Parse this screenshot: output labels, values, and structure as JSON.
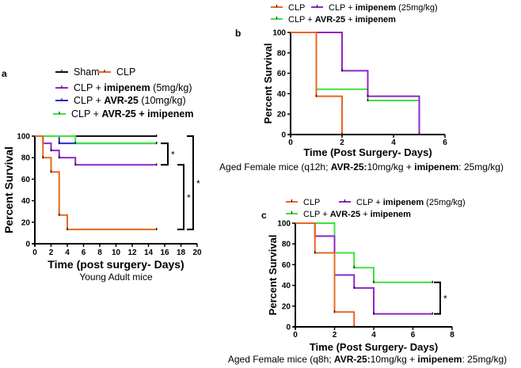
{
  "colors": {
    "sham": "#111111",
    "clp": "#e8671e",
    "imipenem": "#9025c8",
    "avr25": "#2030d0",
    "combo": "#3ee23e"
  },
  "chart_data": [
    {
      "type": "line",
      "panel": "a",
      "title": "",
      "xlabel": "Time (post surgery- Days)",
      "ylabel": "Percent Survival",
      "caption": "Young Adult mice",
      "xlim": [
        0,
        20
      ],
      "xticks": [
        0,
        2,
        4,
        6,
        8,
        10,
        12,
        14,
        16,
        18,
        20
      ],
      "ylim": [
        0,
        100
      ],
      "yticks": [
        0,
        20,
        40,
        60,
        80,
        100
      ],
      "legend": [
        {
          "key": "sham",
          "parts": [
            [
              "Sham",
              0
            ]
          ]
        },
        {
          "key": "clp",
          "parts": [
            [
              "CLP",
              0
            ]
          ]
        },
        {
          "key": "imipenem",
          "parts": [
            [
              "CLP + ",
              0
            ],
            [
              "imipenem",
              1
            ],
            [
              " (5mg/kg)",
              0
            ]
          ]
        },
        {
          "key": "avr25",
          "parts": [
            [
              "CLP + ",
              0
            ],
            [
              "AVR-25",
              1
            ],
            [
              " (10mg/kg)",
              0
            ]
          ]
        },
        {
          "key": "combo",
          "parts": [
            [
              "CLP + ",
              0
            ],
            [
              "AVR-25",
              1
            ],
            [
              " + imipenem",
              1
            ]
          ]
        }
      ],
      "series": [
        {
          "name": "Sham",
          "key": "sham",
          "steps": [
            [
              0,
              100
            ],
            [
              15,
              100
            ]
          ]
        },
        {
          "name": "CLP + AVR-25 (10mg/kg)",
          "key": "avr25",
          "steps": [
            [
              0,
              100
            ],
            [
              3,
              93.3
            ],
            [
              15,
              93.3
            ]
          ]
        },
        {
          "name": "CLP + AVR-25 + imipenem",
          "key": "combo",
          "steps": [
            [
              0,
              100
            ],
            [
              5,
              93.3
            ],
            [
              15,
              93.3
            ]
          ]
        },
        {
          "name": "CLP + imipenem (5mg/kg)",
          "key": "imipenem",
          "steps": [
            [
              0,
              100
            ],
            [
              1,
              93.3
            ],
            [
              2,
              86.7
            ],
            [
              3,
              80
            ],
            [
              5,
              73.3
            ],
            [
              15,
              73.3
            ]
          ]
        },
        {
          "name": "CLP",
          "key": "clp",
          "steps": [
            [
              0,
              100
            ],
            [
              1,
              80
            ],
            [
              2,
              66.7
            ],
            [
              3,
              26.7
            ],
            [
              4,
              13.3
            ],
            [
              15,
              13.3
            ]
          ]
        }
      ],
      "significance": [
        {
          "between": [
            93.3,
            73.3
          ],
          "label": "*"
        },
        {
          "between": [
            73.3,
            13.3
          ],
          "label": "*"
        },
        {
          "between": [
            100,
            13.3
          ],
          "label": "*"
        }
      ]
    },
    {
      "type": "line",
      "panel": "b",
      "xlabel": "Time (Post Surgery- Days)",
      "ylabel": "Percent Survival",
      "caption_parts": [
        [
          "Aged Female mice (q12h; ",
          0
        ],
        [
          "AVR-25:",
          1
        ],
        [
          "10mg/kg + ",
          0
        ],
        [
          "imipenem",
          1
        ],
        [
          ": 25mg/kg)",
          0
        ]
      ],
      "xlim": [
        0,
        6
      ],
      "xticks": [
        0,
        2,
        4,
        6
      ],
      "ylim": [
        0,
        100
      ],
      "yticks": [
        0,
        20,
        40,
        60,
        80,
        100
      ],
      "legend": [
        {
          "key": "clp",
          "parts": [
            [
              "CLP",
              0
            ]
          ]
        },
        {
          "key": "imipenem",
          "parts": [
            [
              "CLP + ",
              0
            ],
            [
              "imipenem",
              1
            ],
            [
              " (25mg/kg)",
              0
            ]
          ]
        },
        {
          "key": "combo",
          "parts": [
            [
              "CLP + ",
              0
            ],
            [
              "AVR-25",
              1
            ],
            [
              "  + ",
              0
            ],
            [
              "imipenem",
              1
            ]
          ]
        }
      ],
      "series": [
        {
          "name": "CLP + AVR-25 + imipenem",
          "key": "combo",
          "steps": [
            [
              0,
              100
            ],
            [
              1,
              44.4
            ],
            [
              3,
              33.3
            ],
            [
              5,
              33.3
            ]
          ]
        },
        {
          "name": "CLP + imipenem (25mg/kg)",
          "key": "imipenem",
          "steps": [
            [
              0,
              100
            ],
            [
              2,
              62.5
            ],
            [
              3,
              37.5
            ],
            [
              5,
              0
            ]
          ]
        },
        {
          "name": "CLP",
          "key": "clp",
          "steps": [
            [
              0,
              100
            ],
            [
              1,
              37.5
            ],
            [
              2,
              0
            ]
          ]
        }
      ],
      "significance": []
    },
    {
      "type": "line",
      "panel": "c",
      "xlabel": "Time (Post Surgery- Days)",
      "ylabel": "Percent Survival",
      "caption_parts": [
        [
          "Aged Female mice (q8h; ",
          0
        ],
        [
          "AVR-25:",
          1
        ],
        [
          "10mg/kg + ",
          0
        ],
        [
          "imipenem",
          1
        ],
        [
          ": 25mg/kg)",
          0
        ]
      ],
      "xlim": [
        0,
        8
      ],
      "xticks": [
        0,
        2,
        4,
        6,
        8
      ],
      "ylim": [
        0,
        100
      ],
      "yticks": [
        0,
        20,
        40,
        60,
        80,
        100
      ],
      "legend": [
        {
          "key": "clp",
          "parts": [
            [
              "CLP",
              0
            ]
          ]
        },
        {
          "key": "imipenem",
          "parts": [
            [
              "CLP + ",
              0
            ],
            [
              "imipenem",
              1
            ],
            [
              " (25mg/kg)",
              0
            ]
          ]
        },
        {
          "key": "combo",
          "parts": [
            [
              "CLP + ",
              0
            ],
            [
              "AVR-25",
              1
            ],
            [
              " + ",
              0
            ],
            [
              "imipenem",
              1
            ]
          ]
        }
      ],
      "series": [
        {
          "name": "CLP + AVR-25 + imipenem",
          "key": "combo",
          "steps": [
            [
              0,
              100
            ],
            [
              2,
              71.4
            ],
            [
              3,
              57.1
            ],
            [
              4,
              42.9
            ],
            [
              7,
              42.9
            ]
          ]
        },
        {
          "name": "CLP + imipenem (25mg/kg)",
          "key": "imipenem",
          "steps": [
            [
              0,
              100
            ],
            [
              1,
              87.5
            ],
            [
              2,
              50
            ],
            [
              3,
              37.5
            ],
            [
              4,
              12.5
            ],
            [
              7,
              12.5
            ]
          ]
        },
        {
          "name": "CLP",
          "key": "clp",
          "steps": [
            [
              0,
              100
            ],
            [
              1,
              71.4
            ],
            [
              2,
              14.3
            ],
            [
              3,
              0
            ]
          ]
        }
      ],
      "significance": [
        {
          "between": [
            42.9,
            12.5
          ],
          "label": "*"
        }
      ]
    }
  ]
}
